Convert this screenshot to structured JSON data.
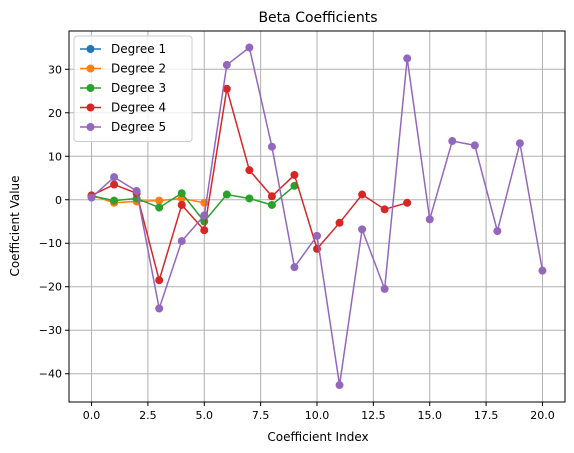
{
  "chart_data": {
    "type": "line",
    "title": "Beta Coefficients",
    "xlabel": "Coefficient Index",
    "ylabel": "Coefficient Value",
    "xlim": [
      -1.0,
      21.0
    ],
    "ylim": [
      -46.5,
      38.8
    ],
    "xticks": [
      0.0,
      2.5,
      5.0,
      7.5,
      10.0,
      12.5,
      15.0,
      17.5,
      20.0
    ],
    "xtick_labels": [
      "0.0",
      "2.5",
      "5.0",
      "7.5",
      "10.0",
      "12.5",
      "15.0",
      "17.5",
      "20.0"
    ],
    "yticks": [
      -40,
      -30,
      -20,
      -10,
      0,
      10,
      20,
      30
    ],
    "ytick_labels": [
      "−40",
      "−30",
      "−20",
      "−10",
      "0",
      "10",
      "20",
      "30"
    ],
    "grid": true,
    "legend_position": "top-left",
    "series": [
      {
        "name": "Degree 1",
        "color": "#1f77b4",
        "x": [
          0,
          1
        ],
        "y": [
          0.9,
          -0.3
        ]
      },
      {
        "name": "Degree 2",
        "color": "#ff7f0e",
        "x": [
          0,
          1,
          2,
          3,
          4,
          5
        ],
        "y": [
          1.0,
          -0.7,
          -0.4,
          -0.2,
          0.3,
          -0.7
        ]
      },
      {
        "name": "Degree 3",
        "color": "#2ca02c",
        "x": [
          0,
          1,
          2,
          3,
          4,
          5,
          6,
          7,
          8,
          9
        ],
        "y": [
          0.9,
          -0.2,
          0.3,
          -1.8,
          1.5,
          -5.0,
          1.2,
          0.3,
          -1.2,
          3.2
        ]
      },
      {
        "name": "Degree 4",
        "color": "#d62728",
        "x": [
          0,
          1,
          2,
          3,
          4,
          5,
          6,
          7,
          8,
          9,
          10,
          11,
          12,
          13,
          14
        ],
        "y": [
          1.0,
          3.5,
          1.5,
          -18.5,
          -1.2,
          -7.0,
          25.5,
          6.8,
          0.8,
          5.7,
          -11.3,
          -5.3,
          1.2,
          -2.2,
          -0.7
        ]
      },
      {
        "name": "Degree 5",
        "color": "#9467bd",
        "x": [
          0,
          1,
          2,
          3,
          4,
          5,
          6,
          7,
          8,
          9,
          10,
          11,
          12,
          13,
          14,
          15,
          16,
          17,
          18,
          19,
          20
        ],
        "y": [
          0.5,
          5.2,
          2.0,
          -25.0,
          -9.5,
          -3.6,
          31.0,
          35.0,
          12.2,
          -15.5,
          -8.3,
          -42.6,
          -6.8,
          -20.5,
          32.5,
          -4.5,
          13.5,
          12.5,
          -7.2,
          13.0,
          -16.3
        ]
      }
    ]
  }
}
